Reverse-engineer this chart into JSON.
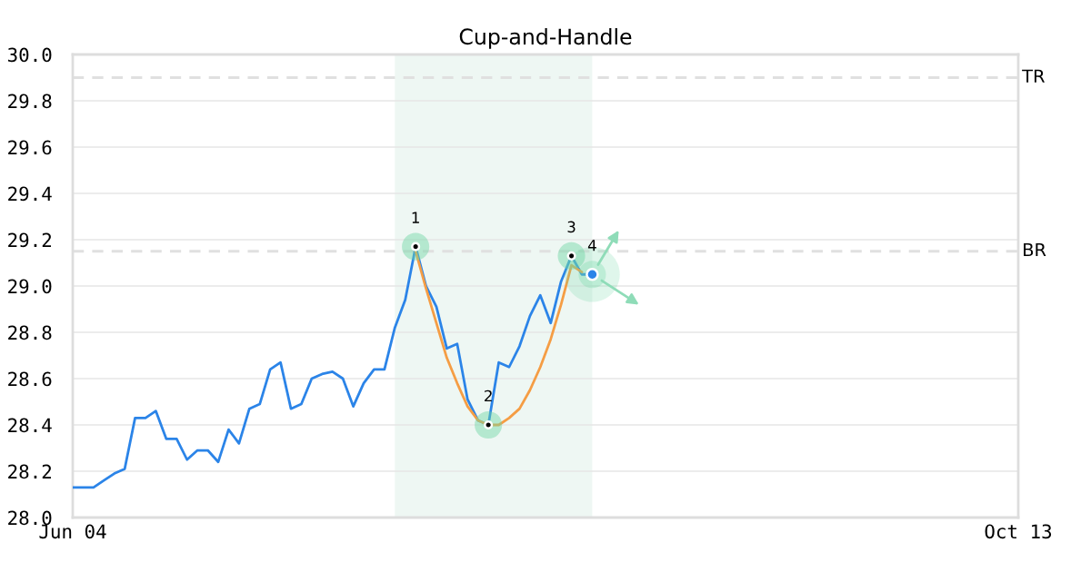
{
  "chart_data": {
    "type": "line",
    "title": "Cup-and-Handle",
    "categories": [
      "Jun 04",
      null,
      null,
      null,
      null,
      null,
      null,
      null,
      null,
      null,
      null,
      null,
      null,
      null,
      null,
      null,
      null,
      null,
      null,
      null,
      null,
      null,
      null,
      null,
      null,
      null,
      null,
      null,
      null,
      null,
      null,
      null,
      null,
      null,
      null,
      null,
      null,
      null,
      null,
      null,
      null,
      null,
      null,
      null,
      null,
      null,
      null,
      null,
      null,
      null,
      null,
      null,
      null,
      null,
      null,
      null,
      null,
      null,
      null,
      null,
      null,
      null,
      null,
      null,
      null,
      null,
      null,
      null,
      null,
      null,
      null,
      null,
      null,
      null,
      null,
      null,
      null,
      null,
      null,
      null,
      null,
      null,
      null,
      null,
      null,
      null,
      null,
      null,
      null,
      null,
      null,
      "Oct 13"
    ],
    "series": [
      {
        "color": "#2b84e8",
        "values": [
          28.13,
          28.13,
          28.13,
          28.16,
          28.19,
          28.21,
          28.43,
          28.43,
          28.46,
          28.34,
          28.34,
          28.25,
          28.29,
          28.29,
          28.24,
          28.38,
          28.32,
          28.47,
          28.49,
          28.64,
          28.67,
          28.47,
          28.49,
          28.6,
          28.62,
          28.63,
          28.6,
          28.48,
          28.58,
          28.64,
          28.64,
          28.82,
          28.94,
          29.17,
          29.0,
          28.91,
          28.73,
          28.75,
          28.51,
          28.42,
          28.4,
          28.67,
          28.65,
          28.74,
          28.87,
          28.96,
          28.84,
          29.02,
          29.13,
          29.05,
          29.05,
          null,
          null,
          null,
          null,
          null,
          null,
          null,
          null,
          null,
          null,
          null,
          null,
          null,
          null,
          null,
          null,
          null,
          null,
          null,
          null,
          null,
          null,
          null,
          null,
          null,
          null,
          null,
          null,
          null,
          null,
          null,
          null,
          null,
          null,
          null,
          null,
          null,
          null,
          null,
          null,
          null
        ]
      },
      {
        "type": "line",
        "color": "#f59d44",
        "values": [
          null,
          null,
          null,
          null,
          null,
          null,
          null,
          null,
          null,
          null,
          null,
          null,
          null,
          null,
          null,
          null,
          null,
          null,
          null,
          null,
          null,
          null,
          null,
          null,
          null,
          null,
          null,
          null,
          null,
          null,
          null,
          null,
          null,
          29.15,
          28.99,
          28.84,
          28.69,
          28.58,
          28.48,
          28.42,
          28.4,
          28.4,
          28.43,
          28.47,
          28.55,
          28.65,
          28.77,
          28.92,
          29.09,
          29.06,
          null,
          null,
          null,
          null,
          null,
          null,
          null,
          null,
          null,
          null,
          null,
          null,
          null,
          null,
          null,
          null,
          null,
          null,
          null,
          null,
          null,
          null,
          null,
          null,
          null,
          null,
          null,
          null,
          null,
          null,
          null,
          null,
          null,
          null,
          null,
          null,
          null,
          null,
          null,
          null,
          null,
          null
        ]
      },
      {
        "type": "scatter",
        "values": [
          null,
          null,
          null,
          null,
          null,
          null,
          null,
          null,
          null,
          null,
          null,
          null,
          null,
          null,
          null,
          null,
          null,
          null,
          null,
          null,
          null,
          null,
          null,
          null,
          null,
          null,
          null,
          null,
          null,
          null,
          null,
          null,
          null,
          29.17,
          null,
          null,
          null,
          null,
          null,
          null,
          28.4,
          null,
          null,
          null,
          null,
          null,
          null,
          null,
          29.13,
          null,
          29.05,
          null,
          null,
          null,
          null,
          null,
          null,
          null,
          null,
          null,
          null,
          null,
          null,
          null,
          null,
          null,
          null,
          null,
          null,
          null,
          null,
          null,
          null,
          null,
          null,
          null,
          null,
          null,
          null,
          null,
          null,
          null,
          null,
          null,
          null,
          null,
          null,
          null,
          null,
          null,
          null,
          null
        ],
        "colors": [
          null,
          null,
          null,
          null,
          null,
          null,
          null,
          null,
          null,
          null,
          null,
          null,
          null,
          null,
          null,
          null,
          null,
          null,
          null,
          null,
          null,
          null,
          null,
          null,
          null,
          null,
          null,
          null,
          null,
          null,
          null,
          null,
          null,
          "#000000",
          null,
          null,
          null,
          null,
          null,
          null,
          "#000000",
          null,
          null,
          null,
          null,
          null,
          null,
          null,
          "#000000",
          null,
          "#2b84e8",
          null,
          null,
          null,
          null,
          null,
          null,
          null,
          null,
          null,
          null,
          null,
          null,
          null,
          null,
          null,
          null,
          null,
          null,
          null,
          null,
          null,
          null,
          null,
          null,
          null,
          null,
          null,
          null,
          null,
          null,
          null,
          null,
          null,
          null,
          null,
          null,
          null,
          null,
          null,
          null,
          null
        ]
      }
    ],
    "ylim": [
      28,
      30
    ],
    "yticks": [
      {
        "value": 28,
        "label": "28.0"
      },
      28.2,
      28.4,
      28.6,
      28.8,
      {
        "value": 29,
        "label": "29.0"
      },
      29.2,
      29.4,
      29.6,
      29.8,
      {
        "value": 30,
        "label": "30.0"
      }
    ],
    "ref_lines": [
      {
        "axis": "y",
        "value": 29.9,
        "label": "TR",
        "color": "#e0e0e0",
        "line_style": "dashed"
      },
      {
        "axis": "y",
        "value": 29.15,
        "label": "BR",
        "color": "#e0e0e0",
        "line_style": "dashed"
      }
    ],
    "annotations": [
      {
        "text": "1",
        "y": 29.17
      },
      {
        "text": "2",
        "y": 28.4
      },
      {
        "text": "3",
        "y": 29.13
      },
      {
        "text": "4",
        "y": 29.05
      }
    ],
    "grid": "y"
  }
}
